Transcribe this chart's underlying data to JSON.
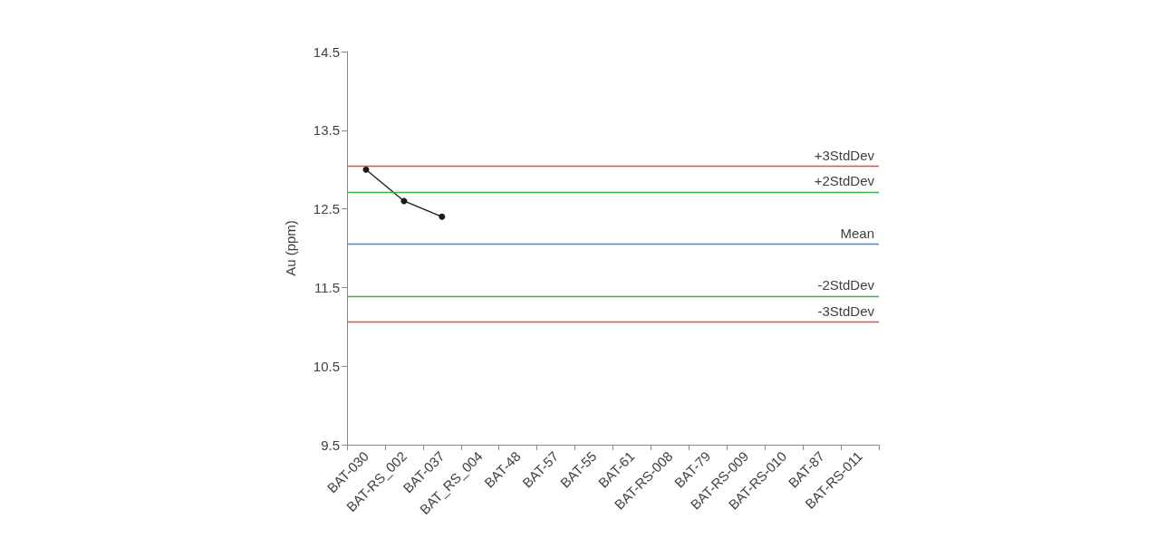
{
  "chart_data": {
    "type": "line",
    "ylabel": "Au (ppm)",
    "categories": [
      "BAT-030",
      "BAT-RS_002",
      "BAT-037",
      "BAT_RS_004",
      "BAT-48",
      "BAT-57",
      "BAT-55",
      "BAT-61",
      "BAT-RS-008",
      "BAT-79",
      "BAT-RS-009",
      "BAT-RS-010",
      "BAT-87",
      "BAT-RS-011"
    ],
    "series": [
      {
        "color": "#1a1a1a",
        "values": [
          13.0,
          12.6,
          12.4,
          null,
          null,
          null,
          null,
          null,
          null,
          null,
          null,
          null,
          null,
          null
        ]
      }
    ],
    "ylim": [
      9.5,
      14.5
    ],
    "yticks": [
      9.5,
      10.5,
      11.5,
      12.5,
      13.5,
      14.5
    ],
    "ref_lines": [
      {
        "axis": "y",
        "value": 13.04,
        "label": "+3StdDev",
        "color": "#ff4040"
      },
      {
        "axis": "y",
        "value": 12.71,
        "label": "+2StdDev",
        "color": "#33b54a"
      },
      {
        "axis": "y",
        "value": 12.05,
        "label": "Mean",
        "color": "#3d8fd6"
      },
      {
        "axis": "y",
        "value": 11.39,
        "label": "-2StdDev",
        "color": "#33b54a"
      },
      {
        "axis": "y",
        "value": 11.06,
        "label": "-3StdDev",
        "color": "#ff4040"
      }
    ],
    "grid": false,
    "marker": "circle",
    "line_style": "solid"
  }
}
